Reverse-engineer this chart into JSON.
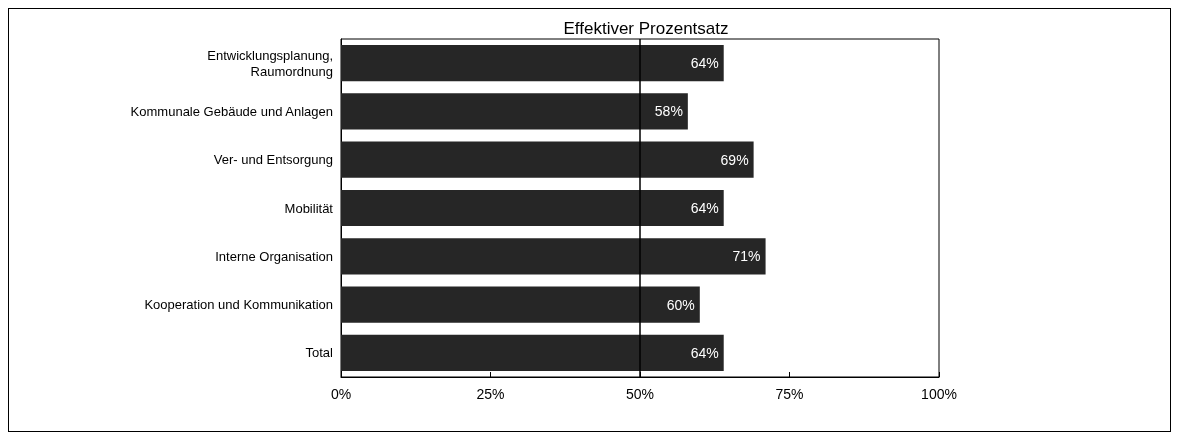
{
  "chart_data": {
    "type": "bar",
    "orientation": "horizontal",
    "title": "Effektiver Prozentsatz",
    "categories": [
      "Entwicklungsplanung,\nRaumordnung",
      "Kommunale Gebäude und Anlagen",
      "Ver- und Entsorgung",
      "Mobilität",
      "Interne Organisation",
      "Kooperation und Kommunikation",
      "Total"
    ],
    "values": [
      64,
      58,
      69,
      64,
      71,
      60,
      64
    ],
    "value_labels": [
      "64%",
      "58%",
      "69%",
      "64%",
      "71%",
      "60%",
      "64%"
    ],
    "color": "#262626",
    "xlim": [
      0,
      100
    ],
    "xticks": [
      {
        "value": 0,
        "label": "0%"
      },
      {
        "value": 25,
        "label": "25%"
      },
      {
        "value": 50,
        "label": "50%"
      },
      {
        "value": 75,
        "label": "75%"
      },
      {
        "value": 100,
        "label": "100%"
      }
    ],
    "ref_lines": [
      {
        "axis": "x",
        "value": 50,
        "color": "#000000"
      }
    ],
    "grid": false
  }
}
